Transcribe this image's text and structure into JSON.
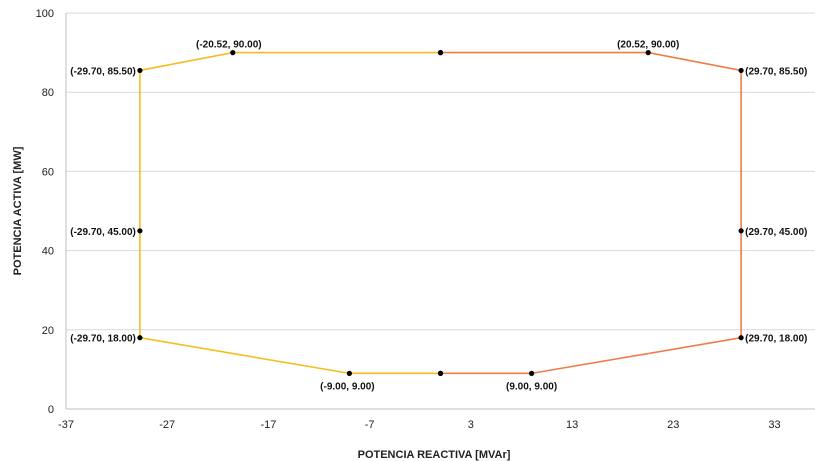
{
  "chart_data": {
    "type": "line",
    "xlabel": "POTENCIA REACTIVA [MVAr]",
    "ylabel": "POTENCIA ACTIVA [MW]",
    "xlim": [
      -37,
      37
    ],
    "ylim": [
      0,
      100
    ],
    "xticks": [
      "-37",
      "-27",
      "-17",
      "-7",
      "3",
      "13",
      "23",
      "33"
    ],
    "yticks": [
      "0",
      "20",
      "40",
      "60",
      "80",
      "100"
    ],
    "grid": true,
    "series": [
      {
        "color": "#F5BE1E",
        "points": [
          {
            "x": 0,
            "y": 9
          },
          {
            "x": -9.0,
            "y": 9.0,
            "label": "(-9.00, 9.00)"
          },
          {
            "x": -29.7,
            "y": 18.0,
            "label": "(-29.70, 18.00)"
          },
          {
            "x": -29.7,
            "y": 45.0,
            "label": "(-29.70, 45.00)"
          },
          {
            "x": -29.7,
            "y": 85.5,
            "label": "(-29.70, 85.50)"
          },
          {
            "x": -20.52,
            "y": 90.0,
            "label": "(-20.52, 90.00)"
          },
          {
            "x": 0,
            "y": 90
          }
        ]
      },
      {
        "color": "#EE7D4B",
        "points": [
          {
            "x": 0,
            "y": 90
          },
          {
            "x": 20.52,
            "y": 90.0,
            "label": "(20.52, 90.00)"
          },
          {
            "x": 29.7,
            "y": 85.5,
            "label": "(29.70, 85.50)"
          },
          {
            "x": 29.7,
            "y": 45.0,
            "label": "(29.70, 45.00)"
          },
          {
            "x": 29.7,
            "y": 18.0,
            "label": "(29.70, 18.00)"
          },
          {
            "x": 9.0,
            "y": 9.0,
            "label": "(9.00, 9.00)"
          },
          {
            "x": 0,
            "y": 9
          }
        ]
      }
    ]
  }
}
